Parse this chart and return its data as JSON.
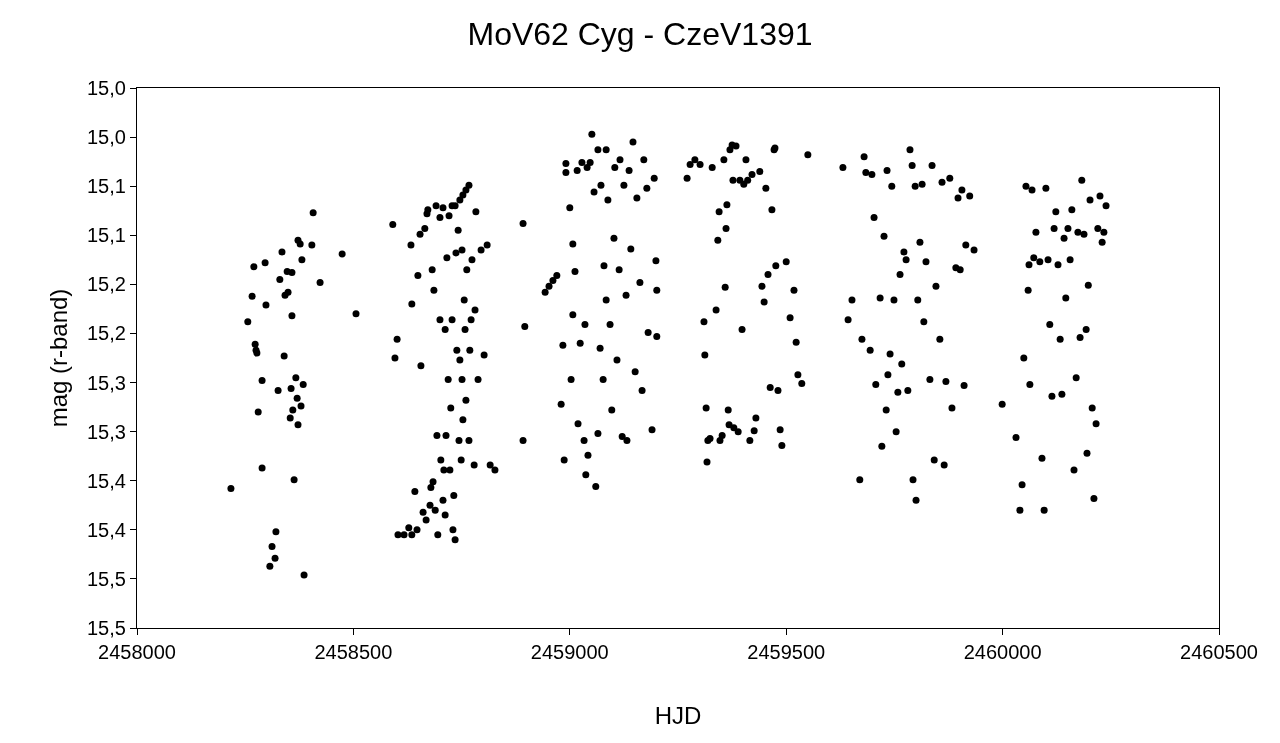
{
  "chart_data": {
    "type": "scatter",
    "title": "MoV62 Cyg - CzeV1391",
    "xlabel": "HJD",
    "ylabel": "mag (r-band)",
    "x": [
      2458217,
      2458256,
      2458266,
      2458270,
      2458273,
      2458275,
      2458277,
      2458280,
      2458289,
      2458289,
      2458296,
      2458298,
      2458307,
      2458312,
      2458319,
      2458321,
      2458326,
      2458330,
      2458335,
      2458340,
      2458342,
      2458347,
      2458349,
      2458354,
      2458356,
      2458358,
      2458358,
      2458360,
      2458363,
      2458367,
      2458370,
      2458372,
      2458372,
      2458377,
      2458381,
      2458384,
      2458386,
      2458379,
      2458404,
      2458407,
      2458423,
      2458474,
      2458506,
      2458591,
      2458596,
      2458601,
      2458603,
      2458617,
      2458628,
      2458635,
      2458633,
      2458635,
      2458642,
      2458647,
      2458649,
      2458654,
      2458656,
      2458661,
      2458665,
      2458668,
      2458670,
      2458672,
      2458677,
      2458679,
      2458682,
      2458684,
      2458686,
      2458689,
      2458691,
      2458693,
      2458695,
      2458700,
      2458700,
      2458702,
      2458707,
      2458707,
      2458709,
      2458712,
      2458712,
      2458714,
      2458716,
      2458719,
      2458721,
      2458723,
      2458725,
      2458728,
      2458728,
      2458730,
      2458732,
      2458735,
      2458735,
      2458737,
      2458739,
      2458742,
      2458744,
      2458746,
      2458746,
      2458749,
      2458751,
      2458751,
      2458753,
      2458753,
      2458756,
      2458758,
      2458760,
      2458760,
      2458762,
      2458767,
      2458767,
      2458769,
      2458772,
      2458774,
      2458779,
      2458781,
      2458783,
      2458788,
      2458795,
      2458802,
      2458809,
      2458816,
      2458827,
      2458892,
      2458896,
      2458892,
      2458943,
      2458952,
      2458961,
      2458970,
      2458980,
      2458984,
      2458987,
      2458991,
      2458991,
      2459000,
      2459003,
      2459007,
      2459007,
      2459012,
      2459017,
      2459019,
      2459024,
      2459028,
      2459033,
      2459035,
      2459037,
      2459040,
      2459042,
      2459047,
      2459051,
      2459056,
      2459060,
      2459065,
      2459065,
      2459070,
      2459072,
      2459077,
      2459079,
      2459084,
      2459084,
      2459088,
      2459093,
      2459097,
      2459102,
      2459104,
      2459109,
      2459114,
      2459116,
      2459121,
      2459125,
      2459130,
      2459132,
      2459137,
      2459141,
      2459146,
      2459151,
      2459155,
      2459162,
      2459167,
      2459171,
      2459178,
      2459181,
      2459190,
      2459195,
      2459199,
      2459201,
      2459201,
      2459271,
      2459278,
      2459289,
      2459301,
      2459310,
      2459312,
      2459315,
      2459317,
      2459319,
      2459324,
      2459329,
      2459338,
      2459342,
      2459345,
      2459347,
      2459352,
      2459356,
      2459359,
      2459361,
      2459363,
      2459366,
      2459368,
      2459370,
      2459375,
      2459377,
      2459379,
      2459384,
      2459389,
      2459393,
      2459398,
      2459402,
      2459407,
      2459411,
      2459416,
      2459421,
      2459426,
      2459430,
      2459439,
      2459444,
      2459449,
      2459453,
      2459458,
      2459463,
      2459467,
      2459472,
      2459474,
      2459476,
      2459481,
      2459486,
      2459490,
      2459500,
      2459509,
      2459518,
      2459523,
      2459527,
      2459536,
      2459550,
      2459631,
      2459643,
      2459652,
      2459670,
      2459675,
      2459680,
      2459684,
      2459694,
      2459698,
      2459703,
      2459707,
      2459717,
      2459721,
      2459726,
      2459731,
      2459733,
      2459735,
      2459740,
      2459744,
      2459749,
      2459754,
      2459758,
      2459763,
      2459767,
      2459772,
      2459777,
      2459781,
      2459786,
      2459791,
      2459793,
      2459798,
      2459800,
      2459804,
      2459809,
      2459814,
      2459818,
      2459823,
      2459832,
      2459837,
      2459842,
      2459846,
      2459855,
      2459860,
      2459865,
      2459869,
      2459878,
      2459883,
      2459892,
      2459897,
      2459902,
      2459906,
      2459911,
      2459915,
      2459924,
      2459934,
      2459999,
      2460031,
      2460040,
      2460045,
      2460049,
      2460054,
      2460059,
      2460061,
      2460063,
      2460068,
      2460072,
      2460077,
      2460086,
      2460091,
      2460096,
      2460100,
      2460105,
      2460109,
      2460114,
      2460119,
      2460123,
      2460128,
      2460133,
      2460137,
      2460142,
      2460146,
      2460151,
      2460156,
      2460160,
      2460165,
      2460170,
      2460174,
      2460179,
      2460183,
      2460188,
      2460193,
      2460195,
      2460198,
      2460202,
      2460207,
      2460211,
      2460216,
      2460220,
      2460225,
      2460230,
      2460234,
      2460239
    ],
    "values": [
      15.358,
      15.188,
      15.162,
      15.132,
      15.211,
      15.217,
      15.22,
      15.28,
      15.337,
      15.248,
      15.128,
      15.171,
      15.437,
      15.417,
      15.429,
      15.402,
      15.258,
      15.145,
      15.117,
      15.223,
      15.161,
      15.137,
      15.158,
      15.286,
      15.256,
      15.138,
      15.182,
      15.278,
      15.349,
      15.245,
      15.266,
      15.105,
      15.293,
      15.109,
      15.125,
      15.252,
      15.446,
      15.274,
      15.11,
      15.077,
      15.148,
      15.119,
      15.18,
      15.089,
      15.225,
      15.206,
      15.405,
      15.405,
      15.398,
      15.405,
      15.11,
      15.17,
      15.361,
      15.4,
      15.141,
      15.099,
      15.233,
      15.382,
      15.093,
      15.39,
      15.078,
      15.074,
      15.375,
      15.357,
      15.135,
      15.351,
      15.156,
      15.38,
      15.07,
      15.304,
      15.405,
      15.082,
      15.186,
      15.329,
      15.072,
      15.37,
      15.339,
      15.196,
      15.385,
      15.304,
      15.123,
      15.247,
      15.08,
      15.339,
      15.276,
      15.186,
      15.07,
      15.4,
      15.365,
      15.07,
      15.41,
      15.118,
      15.217,
      15.095,
      15.309,
      15.064,
      15.227,
      15.329,
      15.115,
      15.247,
      15.059,
      15.288,
      15.166,
      15.196,
      15.054,
      15.268,
      15.135,
      15.049,
      15.309,
      15.217,
      15.186,
      15.125,
      15.334,
      15.176,
      15.076,
      15.247,
      15.115,
      15.222,
      15.11,
      15.334,
      15.339,
      15.309,
      15.193,
      15.088,
      15.158,
      15.152,
      15.146,
      15.141,
      15.272,
      15.212,
      15.329,
      15.027,
      15.036,
      15.072,
      15.247,
      15.109,
      15.181,
      15.137,
      15.034,
      15.292,
      15.21,
      15.026,
      15.309,
      15.191,
      15.344,
      15.031,
      15.324,
      15.026,
      14.997,
      15.056,
      15.356,
      15.013,
      15.302,
      15.215,
      15.049,
      15.247,
      15.131,
      15.013,
      15.166,
      15.064,
      15.191,
      15.278,
      15.103,
      15.031,
      15.227,
      15.135,
      15.023,
      15.305,
      15.049,
      15.161,
      15.309,
      15.034,
      15.114,
      15.005,
      15.239,
      15.062,
      15.148,
      15.258,
      15.023,
      15.052,
      15.199,
      15.298,
      15.042,
      15.126,
      15.203,
      15.156,
      15.042,
      15.028,
      15.023,
      15.028,
      15.188,
      15.222,
      15.276,
      15.331,
      15.309,
      15.307,
      15.031,
      15.176,
      15.105,
      15.076,
      15.309,
      15.304,
      15.023,
      15.153,
      15.093,
      15.069,
      15.278,
      15.293,
      15.013,
      15.008,
      15.044,
      15.296,
      15.009,
      15.3,
      15.044,
      15.196,
      15.048,
      15.023,
      15.044,
      15.309,
      15.038,
      15.299,
      15.286,
      15.035,
      15.152,
      15.168,
      15.052,
      15.14,
      15.255,
      15.074,
      15.013,
      15.011,
      15.131,
      15.258,
      15.298,
      15.314,
      15.127,
      15.184,
      15.156,
      15.209,
      15.242,
      15.251,
      15.018,
      15.031,
      15.186,
      15.166,
      15.349,
      15.206,
      15.02,
      15.036,
      15.217,
      15.038,
      15.082,
      15.252,
      15.164,
      15.315,
      15.101,
      15.278,
      15.034,
      15.242,
      15.221,
      15.05,
      15.166,
      15.3,
      15.26,
      15.14,
      15.231,
      15.117,
      15.125,
      15.258,
      15.013,
      15.029,
      15.349,
      15.05,
      15.37,
      15.166,
      15.107,
      15.048,
      15.188,
      15.127,
      15.247,
      15.029,
      15.329,
      15.152,
      15.206,
      15.046,
      15.334,
      15.249,
      15.042,
      15.276,
      15.133,
      15.062,
      15.135,
      15.054,
      15.253,
      15.11,
      15.06,
      15.115,
      15.272,
      15.306,
      15.38,
      15.354,
      15.225,
      15.05,
      15.156,
      15.13,
      15.252,
      15.054,
      15.123,
      15.097,
      15.127,
      15.327,
      15.38,
      15.052,
      15.125,
      15.191,
      15.264,
      15.093,
      15.076,
      15.13,
      15.206,
      15.262,
      15.103,
      15.164,
      15.093,
      15.125,
      15.074,
      15.339,
      15.245,
      15.097,
      15.204,
      15.044,
      15.099,
      15.196,
      15.322,
      15.151,
      15.064,
      15.276,
      15.368,
      15.292,
      15.093,
      15.06,
      15.107,
      15.097,
      15.07
    ],
    "color": "#000000",
    "marker": "circle",
    "grid": false,
    "legend": false,
    "xlim": [
      2458000,
      2460500
    ],
    "xticks": [
      2458000,
      2458500,
      2459000,
      2459500,
      2460000,
      2460500
    ],
    "ylim": [
      15.5,
      14.95
    ],
    "yticks": [
      {
        "value": 14.95,
        "label": "15,0"
      },
      {
        "value": 15.0,
        "label": "15,0"
      },
      {
        "value": 15.05,
        "label": "15,1"
      },
      {
        "value": 15.1,
        "label": "15,1"
      },
      {
        "value": 15.15,
        "label": "15,2"
      },
      {
        "value": 15.2,
        "label": "15,2"
      },
      {
        "value": 15.25,
        "label": "15,3"
      },
      {
        "value": 15.3,
        "label": "15,3"
      },
      {
        "value": 15.35,
        "label": "15,4"
      },
      {
        "value": 15.4,
        "label": "15,4"
      },
      {
        "value": 15.45,
        "label": "15,5"
      },
      {
        "value": 15.5,
        "label": "15,5"
      }
    ]
  }
}
